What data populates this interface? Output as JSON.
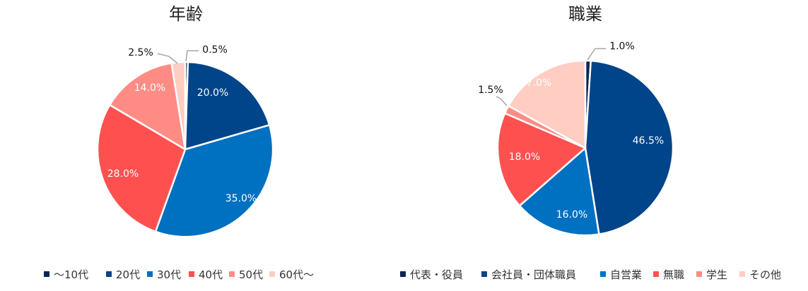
{
  "chart_data": [
    {
      "type": "pie",
      "title": "年齢",
      "categories": [
        "〜10代",
        "20代",
        "30代",
        "40代",
        "50代",
        "60代〜"
      ],
      "values": [
        0.5,
        20.0,
        35.0,
        28.0,
        14.0,
        2.5
      ],
      "value_labels": [
        "0.5%",
        "20.0%",
        "35.0%",
        "28.0%",
        "14.0%",
        "2.5%"
      ],
      "colors": [
        "#0a2456",
        "#00448a",
        "#0070c0",
        "#ff5050",
        "#ff8c84",
        "#ffcdc2"
      ],
      "legend": "bottom"
    },
    {
      "type": "pie",
      "title": "職業",
      "categories": [
        "代表・役員",
        "会社員・団体職員",
        "自営業",
        "無職",
        "学生",
        "その他"
      ],
      "values": [
        1.0,
        46.5,
        16.0,
        18.0,
        1.5,
        17.0
      ],
      "value_labels": [
        "1.0%",
        "46.5%",
        "16.0%",
        "18.0%",
        "1.5%",
        "17.0%"
      ],
      "colors": [
        "#0a2456",
        "#00448a",
        "#0070c0",
        "#ff5050",
        "#ff8c84",
        "#ffcdc2"
      ],
      "legend": "bottom"
    }
  ]
}
